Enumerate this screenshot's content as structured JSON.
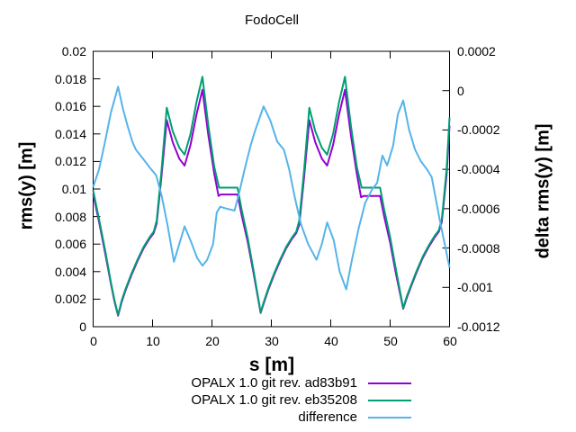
{
  "title": "FodoCell",
  "colors": {
    "series1": "#9400d3",
    "series2": "#009e73",
    "series3": "#56b4e9",
    "axis": "#000000",
    "background": "#ffffff"
  },
  "chart_data": {
    "type": "line",
    "title": "FodoCell",
    "grid": false,
    "legend_position": "below-plot-right",
    "x_axis": {
      "label": "s [m]",
      "range": [
        0,
        60
      ],
      "ticks": [
        "0",
        "10",
        "20",
        "30",
        "40",
        "50",
        "60"
      ],
      "tick_values": [
        0,
        10,
        20,
        30,
        40,
        50,
        60
      ]
    },
    "y_axis_left": {
      "label": "rms(y) [m]",
      "range": [
        0,
        0.02
      ],
      "ticks": [
        "0",
        "0.002",
        "0.004",
        "0.006",
        "0.008",
        "0.01",
        "0.012",
        "0.014",
        "0.016",
        "0.018",
        "0.02"
      ],
      "tick_values": [
        0,
        0.002,
        0.004,
        0.006,
        0.008,
        0.01,
        0.012,
        0.014,
        0.016,
        0.018,
        0.02
      ]
    },
    "y_axis_right": {
      "label": "delta rms(y) [m]",
      "range": [
        -0.0012,
        0.0002
      ],
      "ticks": [
        "0.0002",
        "0",
        "-0.0002",
        "-0.0004",
        "-0.0006",
        "-0.0008",
        "-0.001",
        "-0.0012"
      ],
      "tick_values": [
        0.0002,
        0,
        -0.0002,
        -0.0004,
        -0.0006,
        -0.0008,
        -0.001,
        -0.0012
      ]
    },
    "series": [
      {
        "name": "OPALX 1.0 git rev. ad83b91",
        "color": "#9400d3",
        "axis": "left",
        "points": [
          [
            0,
            0.00965
          ],
          [
            1,
            0.0076
          ],
          [
            2,
            0.0054
          ],
          [
            3,
            0.0031
          ],
          [
            3.6,
            0.0018
          ],
          [
            4.2,
            0.0008
          ],
          [
            4.8,
            0.0018
          ],
          [
            5.5,
            0.0027
          ],
          [
            6.5,
            0.0038
          ],
          [
            7.5,
            0.0048
          ],
          [
            8.5,
            0.0057
          ],
          [
            9.5,
            0.0064
          ],
          [
            10.2,
            0.0068
          ],
          [
            10.7,
            0.0075
          ],
          [
            11.5,
            0.0109
          ],
          [
            12.4,
            0.015
          ],
          [
            13.4,
            0.0134
          ],
          [
            14.5,
            0.0122
          ],
          [
            15.4,
            0.0117
          ],
          [
            16.4,
            0.0132
          ],
          [
            17.4,
            0.0154
          ],
          [
            18.4,
            0.0172
          ],
          [
            19.4,
            0.0139
          ],
          [
            20.4,
            0.0111
          ],
          [
            21.1,
            0.0095
          ],
          [
            21.5,
            0.0096
          ],
          [
            24.3,
            0.0096
          ],
          [
            25,
            0.0081
          ],
          [
            26,
            0.0062
          ],
          [
            27,
            0.0039
          ],
          [
            28.2,
            0.001
          ],
          [
            28.8,
            0.0018
          ],
          [
            29.5,
            0.0027
          ],
          [
            30.5,
            0.0038
          ],
          [
            31.5,
            0.0048
          ],
          [
            32.5,
            0.0057
          ],
          [
            33.5,
            0.0064
          ],
          [
            34.2,
            0.0068
          ],
          [
            34.7,
            0.0074
          ],
          [
            35.5,
            0.0108
          ],
          [
            36.4,
            0.015
          ],
          [
            37.4,
            0.0134
          ],
          [
            38.5,
            0.0122
          ],
          [
            39.4,
            0.0117
          ],
          [
            40.4,
            0.0132
          ],
          [
            41.4,
            0.0154
          ],
          [
            42.4,
            0.0172
          ],
          [
            43.4,
            0.0139
          ],
          [
            44.4,
            0.0111
          ],
          [
            45.1,
            0.0094
          ],
          [
            45.5,
            0.0095
          ],
          [
            48.3,
            0.0095
          ],
          [
            49,
            0.008
          ],
          [
            50,
            0.0061
          ],
          [
            51,
            0.0038
          ],
          [
            52.2,
            0.0013
          ],
          [
            52.8,
            0.0021
          ],
          [
            53.5,
            0.0029
          ],
          [
            54.5,
            0.004
          ],
          [
            55.5,
            0.005
          ],
          [
            56.5,
            0.0058
          ],
          [
            57.5,
            0.0065
          ],
          [
            58.2,
            0.0069
          ],
          [
            58.7,
            0.0076
          ],
          [
            59.5,
            0.011
          ],
          [
            60,
            0.0146
          ]
        ]
      },
      {
        "name": "OPALX 1.0 git rev. eb35208",
        "color": "#009e73",
        "axis": "left",
        "points": [
          [
            0,
            0.0099
          ],
          [
            1,
            0.0078
          ],
          [
            2,
            0.0056
          ],
          [
            3,
            0.0032
          ],
          [
            3.6,
            0.0019
          ],
          [
            4.2,
            0.00085
          ],
          [
            4.8,
            0.0019
          ],
          [
            5.5,
            0.0028
          ],
          [
            6.5,
            0.0039
          ],
          [
            7.5,
            0.0049
          ],
          [
            8.5,
            0.0058
          ],
          [
            9.5,
            0.0065
          ],
          [
            10.2,
            0.0069
          ],
          [
            10.7,
            0.0077
          ],
          [
            11.5,
            0.0113
          ],
          [
            12.4,
            0.0159
          ],
          [
            13.4,
            0.0142
          ],
          [
            14.5,
            0.013
          ],
          [
            15.4,
            0.0125
          ],
          [
            16.4,
            0.014
          ],
          [
            17.4,
            0.0163
          ],
          [
            18.4,
            0.01815
          ],
          [
            19.4,
            0.0146
          ],
          [
            20.4,
            0.0116
          ],
          [
            21.2,
            0.0101
          ],
          [
            24.3,
            0.0101
          ],
          [
            25,
            0.0085
          ],
          [
            26,
            0.0065
          ],
          [
            27,
            0.0041
          ],
          [
            28.2,
            0.00105
          ],
          [
            28.8,
            0.0019
          ],
          [
            29.5,
            0.0028
          ],
          [
            30.5,
            0.0039
          ],
          [
            31.5,
            0.0049
          ],
          [
            32.5,
            0.0058
          ],
          [
            33.5,
            0.0065
          ],
          [
            34.2,
            0.0069
          ],
          [
            34.7,
            0.0077
          ],
          [
            35.5,
            0.0113
          ],
          [
            36.4,
            0.0159
          ],
          [
            37.4,
            0.0142
          ],
          [
            38.5,
            0.013
          ],
          [
            39.4,
            0.0125
          ],
          [
            40.4,
            0.014
          ],
          [
            41.4,
            0.0163
          ],
          [
            42.4,
            0.01815
          ],
          [
            43.4,
            0.0146
          ],
          [
            44.4,
            0.0116
          ],
          [
            45.2,
            0.0101
          ],
          [
            48.3,
            0.0101
          ],
          [
            49,
            0.0085
          ],
          [
            50,
            0.0065
          ],
          [
            51,
            0.0041
          ],
          [
            52.2,
            0.00135
          ],
          [
            52.8,
            0.0022
          ],
          [
            53.5,
            0.003
          ],
          [
            54.5,
            0.0041
          ],
          [
            55.5,
            0.0051
          ],
          [
            56.5,
            0.0059
          ],
          [
            57.5,
            0.0066
          ],
          [
            58.2,
            0.007
          ],
          [
            58.7,
            0.0078
          ],
          [
            59.5,
            0.0114
          ],
          [
            60,
            0.0152
          ]
        ]
      },
      {
        "name": "difference",
        "color": "#56b4e9",
        "axis": "right",
        "points": [
          [
            0,
            -0.00049
          ],
          [
            1,
            -0.0004
          ],
          [
            2,
            -0.00026
          ],
          [
            3,
            -0.00011
          ],
          [
            4.2,
            2e-05
          ],
          [
            5,
            -9e-05
          ],
          [
            5.8,
            -0.00018
          ],
          [
            6.6,
            -0.00026
          ],
          [
            7.2,
            -0.0003
          ],
          [
            8.5,
            -0.00035
          ],
          [
            9.5,
            -0.00039
          ],
          [
            10.6,
            -0.00043
          ],
          [
            11.5,
            -0.00053
          ],
          [
            12.5,
            -0.00068
          ],
          [
            13.6,
            -0.00087
          ],
          [
            14.5,
            -0.00078
          ],
          [
            15.4,
            -0.00069
          ],
          [
            16.5,
            -0.00077
          ],
          [
            17.5,
            -0.00085
          ],
          [
            18.4,
            -0.00089
          ],
          [
            19.2,
            -0.00086
          ],
          [
            20.2,
            -0.00078
          ],
          [
            20.8,
            -0.00062
          ],
          [
            21.4,
            -0.00059
          ],
          [
            22.5,
            -0.0006
          ],
          [
            23.8,
            -0.00061
          ],
          [
            24.5,
            -0.00053
          ],
          [
            25.5,
            -0.0004
          ],
          [
            26.5,
            -0.00028
          ],
          [
            27.2,
            -0.00021
          ],
          [
            28.7,
            -8e-05
          ],
          [
            29.8,
            -0.00015
          ],
          [
            31,
            -0.00026
          ],
          [
            32.1,
            -0.0003
          ],
          [
            33,
            -0.0004
          ],
          [
            34,
            -0.00055
          ],
          [
            35,
            -0.00068
          ],
          [
            36.2,
            -0.00078
          ],
          [
            37.6,
            -0.00086
          ],
          [
            38.5,
            -0.00078
          ],
          [
            39.4,
            -0.00067
          ],
          [
            40.5,
            -0.00076
          ],
          [
            41.5,
            -0.00092
          ],
          [
            42.6,
            -0.00101
          ],
          [
            43.5,
            -0.00087
          ],
          [
            44.7,
            -0.0007
          ],
          [
            45.8,
            -0.00057
          ],
          [
            47,
            -0.0005
          ],
          [
            47.8,
            -0.00047
          ],
          [
            48.7,
            -0.00033
          ],
          [
            49.5,
            -0.00038
          ],
          [
            50.5,
            -0.00028
          ],
          [
            51.3,
            -0.00012
          ],
          [
            52.2,
            -5e-05
          ],
          [
            53.2,
            -0.0002
          ],
          [
            54.2,
            -0.0003
          ],
          [
            55.2,
            -0.00036
          ],
          [
            56.2,
            -0.0004
          ],
          [
            57,
            -0.00044
          ],
          [
            58.3,
            -0.00065
          ],
          [
            60,
            -0.0009
          ]
        ]
      }
    ]
  }
}
